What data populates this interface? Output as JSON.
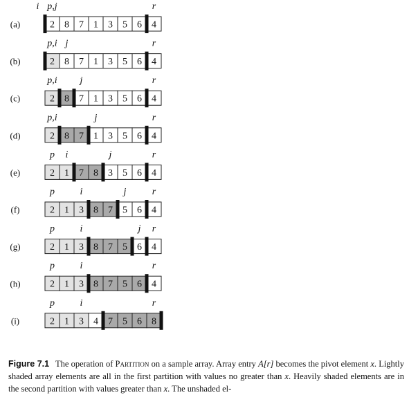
{
  "figure": {
    "rows": [
      {
        "label": "(a)",
        "values": [
          "2",
          "8",
          "7",
          "1",
          "3",
          "5",
          "6",
          "4"
        ],
        "shade": [
          "none",
          "none",
          "none",
          "none",
          "none",
          "none",
          "none",
          "none"
        ],
        "markers": [
          {
            "text": "i",
            "cell": -1
          },
          {
            "text": "p,j",
            "cell": 0
          },
          {
            "text": "r",
            "cell": 7
          }
        ],
        "bars": [
          0,
          7
        ]
      },
      {
        "label": "(b)",
        "values": [
          "2",
          "8",
          "7",
          "1",
          "3",
          "5",
          "6",
          "4"
        ],
        "shade": [
          "light",
          "none",
          "none",
          "none",
          "none",
          "none",
          "none",
          "none"
        ],
        "markers": [
          {
            "text": "p,i",
            "cell": 0
          },
          {
            "text": "j",
            "cell": 1
          },
          {
            "text": "r",
            "cell": 7
          }
        ],
        "bars": [
          0,
          7
        ]
      },
      {
        "label": "(c)",
        "values": [
          "2",
          "8",
          "7",
          "1",
          "3",
          "5",
          "6",
          "4"
        ],
        "shade": [
          "light",
          "dark",
          "none",
          "none",
          "none",
          "none",
          "none",
          "none"
        ],
        "markers": [
          {
            "text": "p,i",
            "cell": 0
          },
          {
            "text": "j",
            "cell": 2
          },
          {
            "text": "r",
            "cell": 7
          }
        ],
        "bars": [
          1,
          2,
          7
        ]
      },
      {
        "label": "(d)",
        "values": [
          "2",
          "8",
          "7",
          "1",
          "3",
          "5",
          "6",
          "4"
        ],
        "shade": [
          "light",
          "dark",
          "dark",
          "none",
          "none",
          "none",
          "none",
          "none"
        ],
        "markers": [
          {
            "text": "p,i",
            "cell": 0
          },
          {
            "text": "j",
            "cell": 3
          },
          {
            "text": "r",
            "cell": 7
          }
        ],
        "bars": [
          1,
          3,
          7
        ]
      },
      {
        "label": "(e)",
        "values": [
          "2",
          "1",
          "7",
          "8",
          "3",
          "5",
          "6",
          "4"
        ],
        "shade": [
          "light",
          "light",
          "dark",
          "dark",
          "none",
          "none",
          "none",
          "none"
        ],
        "markers": [
          {
            "text": "p",
            "cell": 0
          },
          {
            "text": "i",
            "cell": 1
          },
          {
            "text": "j",
            "cell": 4
          },
          {
            "text": "r",
            "cell": 7
          }
        ],
        "bars": [
          2,
          4,
          7
        ]
      },
      {
        "label": "(f)",
        "values": [
          "2",
          "1",
          "3",
          "8",
          "7",
          "5",
          "6",
          "4"
        ],
        "shade": [
          "light",
          "light",
          "light",
          "dark",
          "dark",
          "none",
          "none",
          "none"
        ],
        "markers": [
          {
            "text": "p",
            "cell": 0
          },
          {
            "text": "i",
            "cell": 2
          },
          {
            "text": "j",
            "cell": 5
          },
          {
            "text": "r",
            "cell": 7
          }
        ],
        "bars": [
          3,
          5,
          7
        ]
      },
      {
        "label": "(g)",
        "values": [
          "2",
          "1",
          "3",
          "8",
          "7",
          "5",
          "6",
          "4"
        ],
        "shade": [
          "light",
          "light",
          "light",
          "dark",
          "dark",
          "dark",
          "none",
          "none"
        ],
        "markers": [
          {
            "text": "p",
            "cell": 0
          },
          {
            "text": "i",
            "cell": 2
          },
          {
            "text": "j",
            "cell": 6
          },
          {
            "text": "r",
            "cell": 7
          }
        ],
        "bars": [
          3,
          6,
          7
        ]
      },
      {
        "label": "(h)",
        "values": [
          "2",
          "1",
          "3",
          "8",
          "7",
          "5",
          "6",
          "4"
        ],
        "shade": [
          "light",
          "light",
          "light",
          "dark",
          "dark",
          "dark",
          "dark",
          "none"
        ],
        "markers": [
          {
            "text": "p",
            "cell": 0
          },
          {
            "text": "i",
            "cell": 2
          },
          {
            "text": "r",
            "cell": 7
          }
        ],
        "bars": [
          3,
          7
        ]
      },
      {
        "label": "(i)",
        "values": [
          "2",
          "1",
          "3",
          "4",
          "7",
          "5",
          "6",
          "8"
        ],
        "shade": [
          "light",
          "light",
          "light",
          "none",
          "dark",
          "dark",
          "dark",
          "dark"
        ],
        "markers": [
          {
            "text": "p",
            "cell": 0
          },
          {
            "text": "i",
            "cell": 2
          },
          {
            "text": "r",
            "cell": 7
          }
        ],
        "bars": [
          4,
          8
        ]
      }
    ],
    "colors": {
      "light": "#e3e3e3",
      "dark": "#a9a9a9",
      "none": "#ffffff",
      "border": "#222222",
      "bar": "#111111"
    }
  },
  "caption": {
    "label": "Figure 7.1",
    "text_1": "The operation of ",
    "partition": "Partition",
    "text_2": " on a sample array. Array entry ",
    "array_ref": "A[r]",
    "text_3": " becomes the pivot element ",
    "x1": "x",
    "text_4": ". Lightly shaded array elements are all in the first partition with values no greater than ",
    "x2": "x",
    "text_5": ". Heavily shaded elements are in the second partition with values greater than ",
    "x3": "x",
    "text_6": ". The unshaded el-"
  }
}
